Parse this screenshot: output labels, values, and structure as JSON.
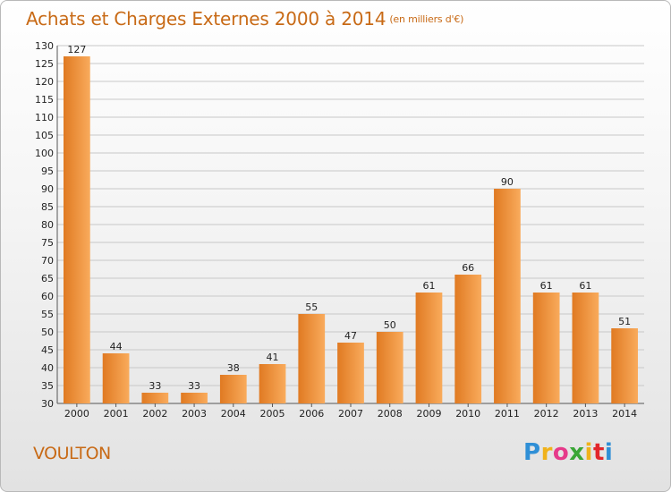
{
  "title": "Achats et Charges Externes 2000 à 2014",
  "subtitle": "(en milliers d'€)",
  "commune": "VOULTON",
  "logo": {
    "text": "Proxiti",
    "letters": [
      "P",
      "r",
      "o",
      "x",
      "i",
      "t",
      "i"
    ],
    "colors": [
      "#2f8fd6",
      "#f0b21a",
      "#e63a8a",
      "#3aa636",
      "#f0b21a",
      "#e2262b",
      "#2f8fd6"
    ]
  },
  "colors": {
    "bar_light": "#f9ab5c",
    "bar_dark": "#e07a22",
    "title": "#c86a16",
    "grid": "#c8c8c8"
  },
  "chart_data": {
    "type": "bar",
    "title": "Achats et Charges Externes 2000 à 2014",
    "subtitle": "(en milliers d'€)",
    "xlabel": "",
    "ylabel": "",
    "categories": [
      "2000",
      "2001",
      "2002",
      "2003",
      "2004",
      "2005",
      "2006",
      "2007",
      "2008",
      "2009",
      "2010",
      "2011",
      "2012",
      "2013",
      "2014"
    ],
    "values": [
      127,
      44,
      33,
      33,
      38,
      41,
      55,
      47,
      50,
      61,
      66,
      90,
      61,
      61,
      51
    ],
    "ylim": [
      30,
      130
    ],
    "yticks": [
      30,
      35,
      40,
      45,
      50,
      55,
      60,
      65,
      70,
      75,
      80,
      85,
      90,
      95,
      100,
      105,
      110,
      115,
      120,
      125,
      130
    ],
    "grid": true,
    "data_labels": true
  }
}
